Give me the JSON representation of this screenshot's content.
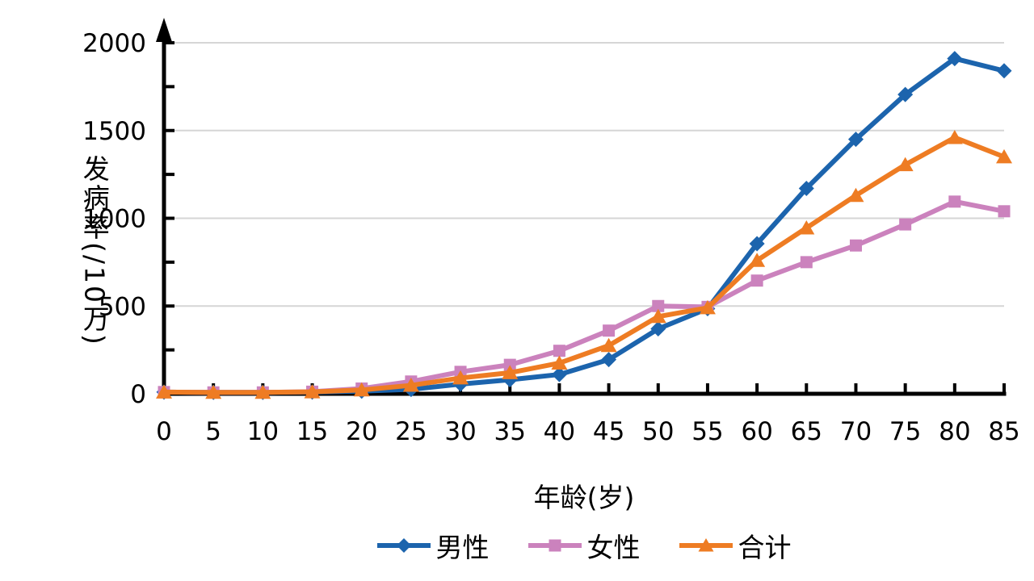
{
  "chart_data": {
    "type": "line",
    "title": "",
    "xlabel": "年龄(岁)",
    "ylabel": "发病率(/10万)",
    "x": [
      0,
      5,
      10,
      15,
      20,
      25,
      30,
      35,
      40,
      45,
      50,
      55,
      60,
      65,
      70,
      75,
      80,
      85
    ],
    "xtick_labels": [
      "0",
      "5",
      "10",
      "15",
      "20",
      "25",
      "30",
      "35",
      "40",
      "45",
      "50",
      "55",
      "60",
      "65",
      "70",
      "75",
      "80",
      "85"
    ],
    "ylim": [
      0,
      2000
    ],
    "ytick_major": 500,
    "ytick_minor": 250,
    "ytick_labels": [
      "0",
      "500",
      "1000",
      "1500",
      "2000"
    ],
    "grid": "horizontal-major-only",
    "y_axis_arrow": true,
    "legend_position": "bottom-center",
    "series": [
      {
        "id": "male",
        "name": "男性",
        "color": "#1c64ad",
        "marker": "diamond",
        "values": [
          10,
          8,
          8,
          10,
          15,
          25,
          55,
          80,
          110,
          195,
          370,
          485,
          855,
          1170,
          1450,
          1705,
          1910,
          1840
        ]
      },
      {
        "id": "female",
        "name": "女性",
        "color": "#cb82bd",
        "marker": "square",
        "values": [
          10,
          8,
          8,
          12,
          30,
          70,
          125,
          165,
          245,
          360,
          500,
          495,
          645,
          750,
          845,
          965,
          1095,
          1040
        ]
      },
      {
        "id": "total",
        "name": "合计",
        "color": "#ee7c23",
        "marker": "triangle",
        "values": [
          10,
          8,
          8,
          11,
          22,
          48,
          90,
          120,
          175,
          275,
          440,
          490,
          760,
          945,
          1130,
          1305,
          1460,
          1350
        ]
      }
    ],
    "colors": {
      "axis": "#000000",
      "grid": "#d6d6d6",
      "text": "#000000",
      "background": "#ffffff"
    }
  }
}
